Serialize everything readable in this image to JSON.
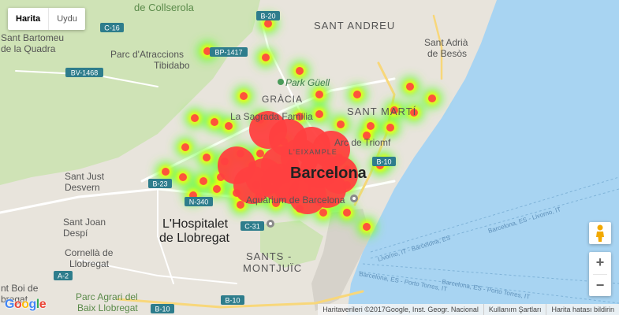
{
  "map_type": {
    "map_label": "Harita",
    "satellite_label": "Uydu",
    "selected": "Harita"
  },
  "labels": {
    "barcelona": "Barcelona",
    "hospitalet_1": "L'Hospitalet",
    "hospitalet_2": "de Llobregat",
    "sant_andreu": "SANT ANDREU",
    "sant_marti": "SANT MARTÍ",
    "gracia": "GRÀCIA",
    "eixample": "L'EIXAMPLE",
    "sants_1": "SANTS -",
    "sants_2": "MONTJUÏC",
    "park_guell": "Park Güell",
    "sagrada": "La Sagrada Família",
    "arc": "Arc de Triomf",
    "aquarium": "Aquàrium de Barcelona",
    "tibidabo_1": "Parc d'Atraccions",
    "tibidabo_2": "Tibidabo",
    "collserola": "de Collserola",
    "bartomeu_1": "Sant Bartomeu",
    "bartomeu_2": "de la Quadra",
    "sant_just_1": "Sant Just",
    "sant_just_2": "Desvern",
    "sant_joan_1": "Sant Joan",
    "sant_joan_2": "Despí",
    "cornella_1": "Cornellà de",
    "cornella_2": "Llobregat",
    "boi_1": "nt Boi de",
    "boi_2": "bregat",
    "parc_agrari_1": "Parc Agrari del",
    "parc_agrari_2": "Baix Llobregat",
    "adria_1": "Sant Adrià",
    "adria_2": "de Besòs",
    "route_livorno_1": "Barcelona, ES - Livorno, IT",
    "route_livorno_2": "Livorno, IT - Barcelona, ES",
    "route_porto": "Barcelona, ES - Porto Torres, IT",
    "route_porto_2": "Barcelona, ES - Porto Torres, IT"
  },
  "road_shields": [
    "B-20",
    "C-16",
    "BP-1417",
    "BV-1468",
    "B-23",
    "N-340",
    "C-31",
    "B-10",
    "A-2",
    "B-10",
    "B-10"
  ],
  "footer": {
    "attribution": "Haritaverileri ©2017Google, Inst. Geogr. Nacional",
    "terms": "Kullanım Şartları",
    "report": "Harita hatası bildirin"
  },
  "logo": "Google",
  "zoom": {
    "in": "+",
    "out": "−"
  },
  "icons": [
    "pegman-icon",
    "zoom-in-icon",
    "zoom-out-icon",
    "google-logo"
  ],
  "colors": {
    "sea": "#a8d4f2",
    "land": "#e8e4dc",
    "park": "#c8dfb0",
    "heat_high": "#ff4040",
    "heat_mid": "#ffff00",
    "heat_low": "#66ff33"
  },
  "heatmap": {
    "points": [
      [
        340,
        30
      ],
      [
        263,
        65
      ],
      [
        337,
        73
      ],
      [
        380,
        90
      ],
      [
        405,
        120
      ],
      [
        453,
        120
      ],
      [
        309,
        122
      ],
      [
        247,
        150
      ],
      [
        272,
        155
      ],
      [
        290,
        160
      ],
      [
        330,
        152
      ],
      [
        380,
        148
      ],
      [
        405,
        145
      ],
      [
        432,
        158
      ],
      [
        465,
        172
      ],
      [
        500,
        140
      ],
      [
        520,
        110
      ],
      [
        548,
        125
      ],
      [
        525,
        143
      ],
      [
        495,
        162
      ],
      [
        470,
        160
      ],
      [
        235,
        187
      ],
      [
        262,
        200
      ],
      [
        285,
        205
      ],
      [
        305,
        195
      ],
      [
        330,
        195
      ],
      [
        360,
        190
      ],
      [
        400,
        195
      ],
      [
        430,
        200
      ],
      [
        440,
        215
      ],
      [
        210,
        218
      ],
      [
        232,
        225
      ],
      [
        258,
        230
      ],
      [
        280,
        225
      ],
      [
        320,
        210
      ],
      [
        350,
        215
      ],
      [
        380,
        225
      ],
      [
        410,
        230
      ],
      [
        440,
        235
      ],
      [
        245,
        248
      ],
      [
        275,
        240
      ],
      [
        300,
        245
      ],
      [
        325,
        235
      ],
      [
        345,
        240
      ],
      [
        370,
        245
      ],
      [
        395,
        250
      ],
      [
        420,
        255
      ],
      [
        380,
        265
      ],
      [
        410,
        270
      ],
      [
        440,
        270
      ],
      [
        482,
        210
      ],
      [
        487,
        205
      ],
      [
        465,
        288
      ],
      [
        350,
        258
      ],
      [
        328,
        250
      ],
      [
        305,
        260
      ],
      [
        360,
        180
      ]
    ],
    "core": [
      [
        340,
        165
      ],
      [
        365,
        175
      ],
      [
        395,
        185
      ],
      [
        420,
        190
      ],
      [
        380,
        200
      ],
      [
        355,
        210
      ],
      [
        335,
        225
      ],
      [
        370,
        235
      ],
      [
        405,
        215
      ],
      [
        430,
        222
      ],
      [
        415,
        240
      ],
      [
        390,
        248
      ],
      [
        355,
        232
      ],
      [
        320,
        235
      ],
      [
        300,
        210
      ]
    ]
  }
}
